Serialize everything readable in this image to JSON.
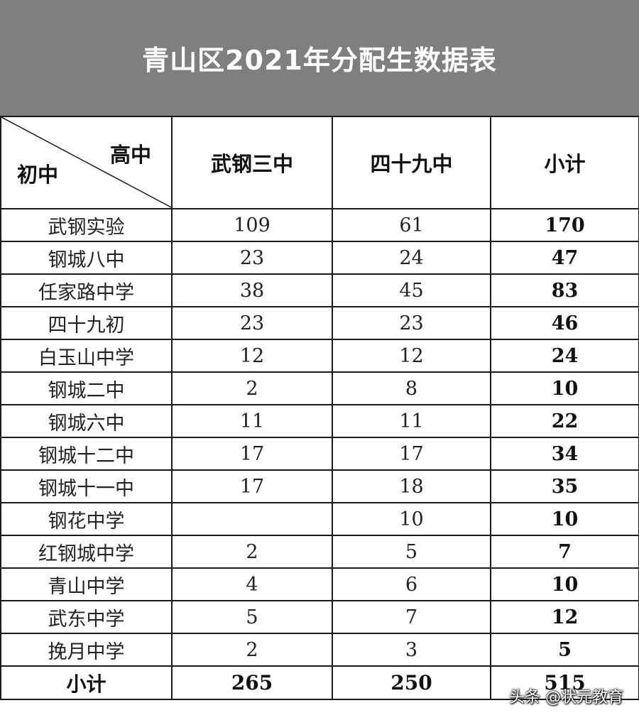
{
  "title": "青山区2021年分配生数据表",
  "header": {
    "corner_top": "高中",
    "corner_bottom": "初中",
    "columns": [
      "武钢三中",
      "四十九中",
      "小计"
    ]
  },
  "rows": [
    {
      "name": "武钢实验",
      "a": "109",
      "b": "61",
      "subtotal": "170"
    },
    {
      "name": "钢城八中",
      "a": "23",
      "b": "24",
      "subtotal": "47"
    },
    {
      "name": "任家路中学",
      "a": "38",
      "b": "45",
      "subtotal": "83"
    },
    {
      "name": "四十九初",
      "a": "23",
      "b": "23",
      "subtotal": "46"
    },
    {
      "name": "白玉山中学",
      "a": "12",
      "b": "12",
      "subtotal": "24"
    },
    {
      "name": "钢城二中",
      "a": "2",
      "b": "8",
      "subtotal": "10"
    },
    {
      "name": "钢城六中",
      "a": "11",
      "b": "11",
      "subtotal": "22"
    },
    {
      "name": "钢城十二中",
      "a": "17",
      "b": "17",
      "subtotal": "34"
    },
    {
      "name": "钢城十一中",
      "a": "17",
      "b": "18",
      "subtotal": "35"
    },
    {
      "name": "钢花中学",
      "a": "",
      "b": "10",
      "subtotal": "10"
    },
    {
      "name": "红钢城中学",
      "a": "2",
      "b": "5",
      "subtotal": "7"
    },
    {
      "name": "青山中学",
      "a": "4",
      "b": "6",
      "subtotal": "10"
    },
    {
      "name": "武东中学",
      "a": "5",
      "b": "7",
      "subtotal": "12"
    },
    {
      "name": "挽月中学",
      "a": "2",
      "b": "3",
      "subtotal": "5"
    }
  ],
  "total": {
    "label": "小计",
    "a": "265",
    "b": "250",
    "subtotal": "515"
  },
  "watermark": "头条 @状元教育",
  "colors": {
    "title_bg": "#7f7f7f",
    "title_text": "#ffffff",
    "border": "#1a1a1a"
  }
}
